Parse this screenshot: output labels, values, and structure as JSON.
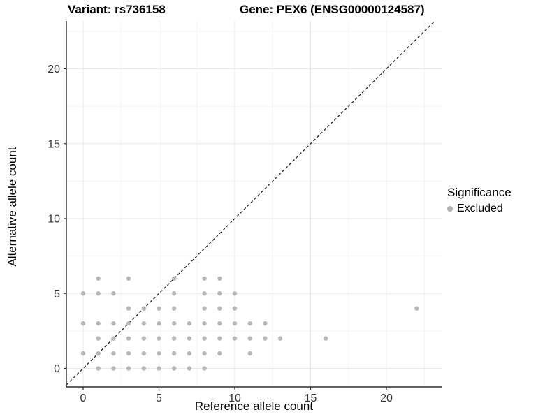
{
  "titles": {
    "variant": "Variant: rs736158",
    "gene": "Gene: PEX6 (ENSG00000124587)"
  },
  "legend": {
    "title": "Significance",
    "items": [
      {
        "label": "Excluded",
        "color": "#b4b4b4"
      }
    ]
  },
  "chart_data": {
    "type": "scatter",
    "title": "Variant: rs736158 / Gene: PEX6 (ENSG00000124587)",
    "xlabel": "Reference allele count",
    "ylabel": "Alternative allele count",
    "x_ticks": [
      0,
      5,
      10,
      15,
      20
    ],
    "y_ticks": [
      0,
      5,
      10,
      15,
      20
    ],
    "xlim": [
      -1.1,
      23.6
    ],
    "ylim": [
      -1.2,
      23.2
    ],
    "grid": "major+minor",
    "minor_step": 2.5,
    "legend_position": "right",
    "diagonal_line": {
      "style": "dashed",
      "slope": 1,
      "intercept": 0
    },
    "series": [
      {
        "name": "Excluded",
        "color": "#b4b4b4",
        "points": [
          [
            1,
            0
          ],
          [
            2,
            0
          ],
          [
            3,
            0
          ],
          [
            4,
            0
          ],
          [
            5,
            0
          ],
          [
            6,
            0
          ],
          [
            7,
            0
          ],
          [
            8,
            0
          ],
          [
            0,
            1
          ],
          [
            1,
            1
          ],
          [
            2,
            1
          ],
          [
            3,
            1
          ],
          [
            4,
            1
          ],
          [
            5,
            1
          ],
          [
            6,
            1
          ],
          [
            7,
            1
          ],
          [
            8,
            1
          ],
          [
            9,
            1
          ],
          [
            11,
            1
          ],
          [
            1,
            2
          ],
          [
            2,
            2
          ],
          [
            3,
            2
          ],
          [
            4,
            2
          ],
          [
            5,
            2
          ],
          [
            6,
            2
          ],
          [
            7,
            2
          ],
          [
            8,
            2
          ],
          [
            9,
            2
          ],
          [
            10,
            2
          ],
          [
            11,
            2
          ],
          [
            12,
            2
          ],
          [
            13,
            2
          ],
          [
            16,
            2
          ],
          [
            0,
            3
          ],
          [
            1,
            3
          ],
          [
            2,
            3
          ],
          [
            3,
            3
          ],
          [
            4,
            3
          ],
          [
            5,
            3
          ],
          [
            6,
            3
          ],
          [
            7,
            3
          ],
          [
            8,
            3
          ],
          [
            9,
            3
          ],
          [
            10,
            3
          ],
          [
            11,
            3
          ],
          [
            12,
            3
          ],
          [
            3,
            4
          ],
          [
            4,
            4
          ],
          [
            5,
            4
          ],
          [
            6,
            4
          ],
          [
            8,
            4
          ],
          [
            9,
            4
          ],
          [
            10,
            4
          ],
          [
            22,
            4
          ],
          [
            0,
            5
          ],
          [
            1,
            5
          ],
          [
            2,
            5
          ],
          [
            6,
            5
          ],
          [
            8,
            5
          ],
          [
            9,
            5
          ],
          [
            10,
            5
          ],
          [
            1,
            6
          ],
          [
            3,
            6
          ],
          [
            6,
            6
          ],
          [
            8,
            6
          ],
          [
            9,
            6
          ]
        ]
      }
    ]
  },
  "colors": {
    "point": "#b4b4b4",
    "grid_major": "#e9e9e9",
    "grid_minor": "#f4f4f4",
    "axis_line": "#2b2b2b",
    "tick_text": "#333333",
    "diagonal": "#1a1a1a",
    "background": "#ffffff"
  }
}
